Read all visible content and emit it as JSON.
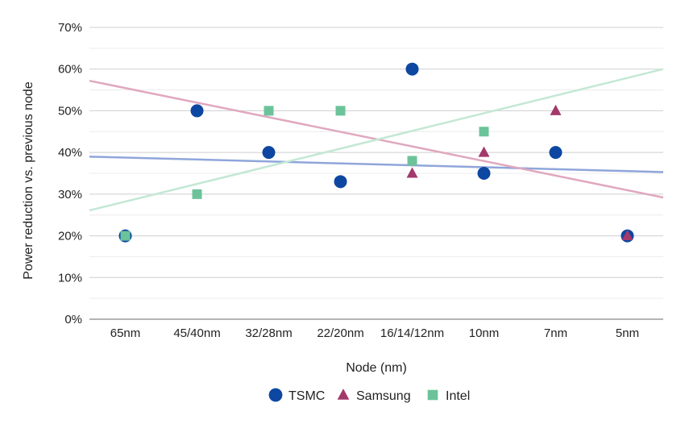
{
  "chart_data": {
    "type": "scatter",
    "title": "",
    "xlabel": "Node (nm)",
    "ylabel": "Power reduction vs. previous node",
    "categories": [
      "65nm",
      "45/40nm",
      "32/28nm",
      "22/20nm",
      "16/14/12nm",
      "10nm",
      "7nm",
      "5nm"
    ],
    "ylim": [
      0,
      70
    ],
    "yticks": [
      "0%",
      "10%",
      "20%",
      "30%",
      "40%",
      "50%",
      "60%",
      "70%"
    ],
    "grid": true,
    "legend_position": "bottom",
    "series": [
      {
        "name": "TSMC",
        "marker": "circle",
        "color": "#0d47a1",
        "values": [
          20,
          50,
          40,
          33,
          60,
          35,
          40,
          20
        ],
        "trendline": {
          "color": "#8fa6db",
          "start": 39,
          "end": 35.3
        }
      },
      {
        "name": "Samsung",
        "marker": "triangle",
        "color": "#a3386b",
        "values": [
          null,
          null,
          null,
          null,
          35,
          40,
          50,
          20
        ],
        "trendline": {
          "color": "#e0a8bf",
          "start": 57.2,
          "end": 29.2
        }
      },
      {
        "name": "Intel",
        "marker": "square",
        "color": "#6cc39a",
        "values": [
          20,
          30,
          50,
          50,
          38,
          45,
          null,
          null
        ],
        "trendline": {
          "color": "#c3e8d4",
          "start": 26.1,
          "end": 60
        }
      }
    ]
  }
}
